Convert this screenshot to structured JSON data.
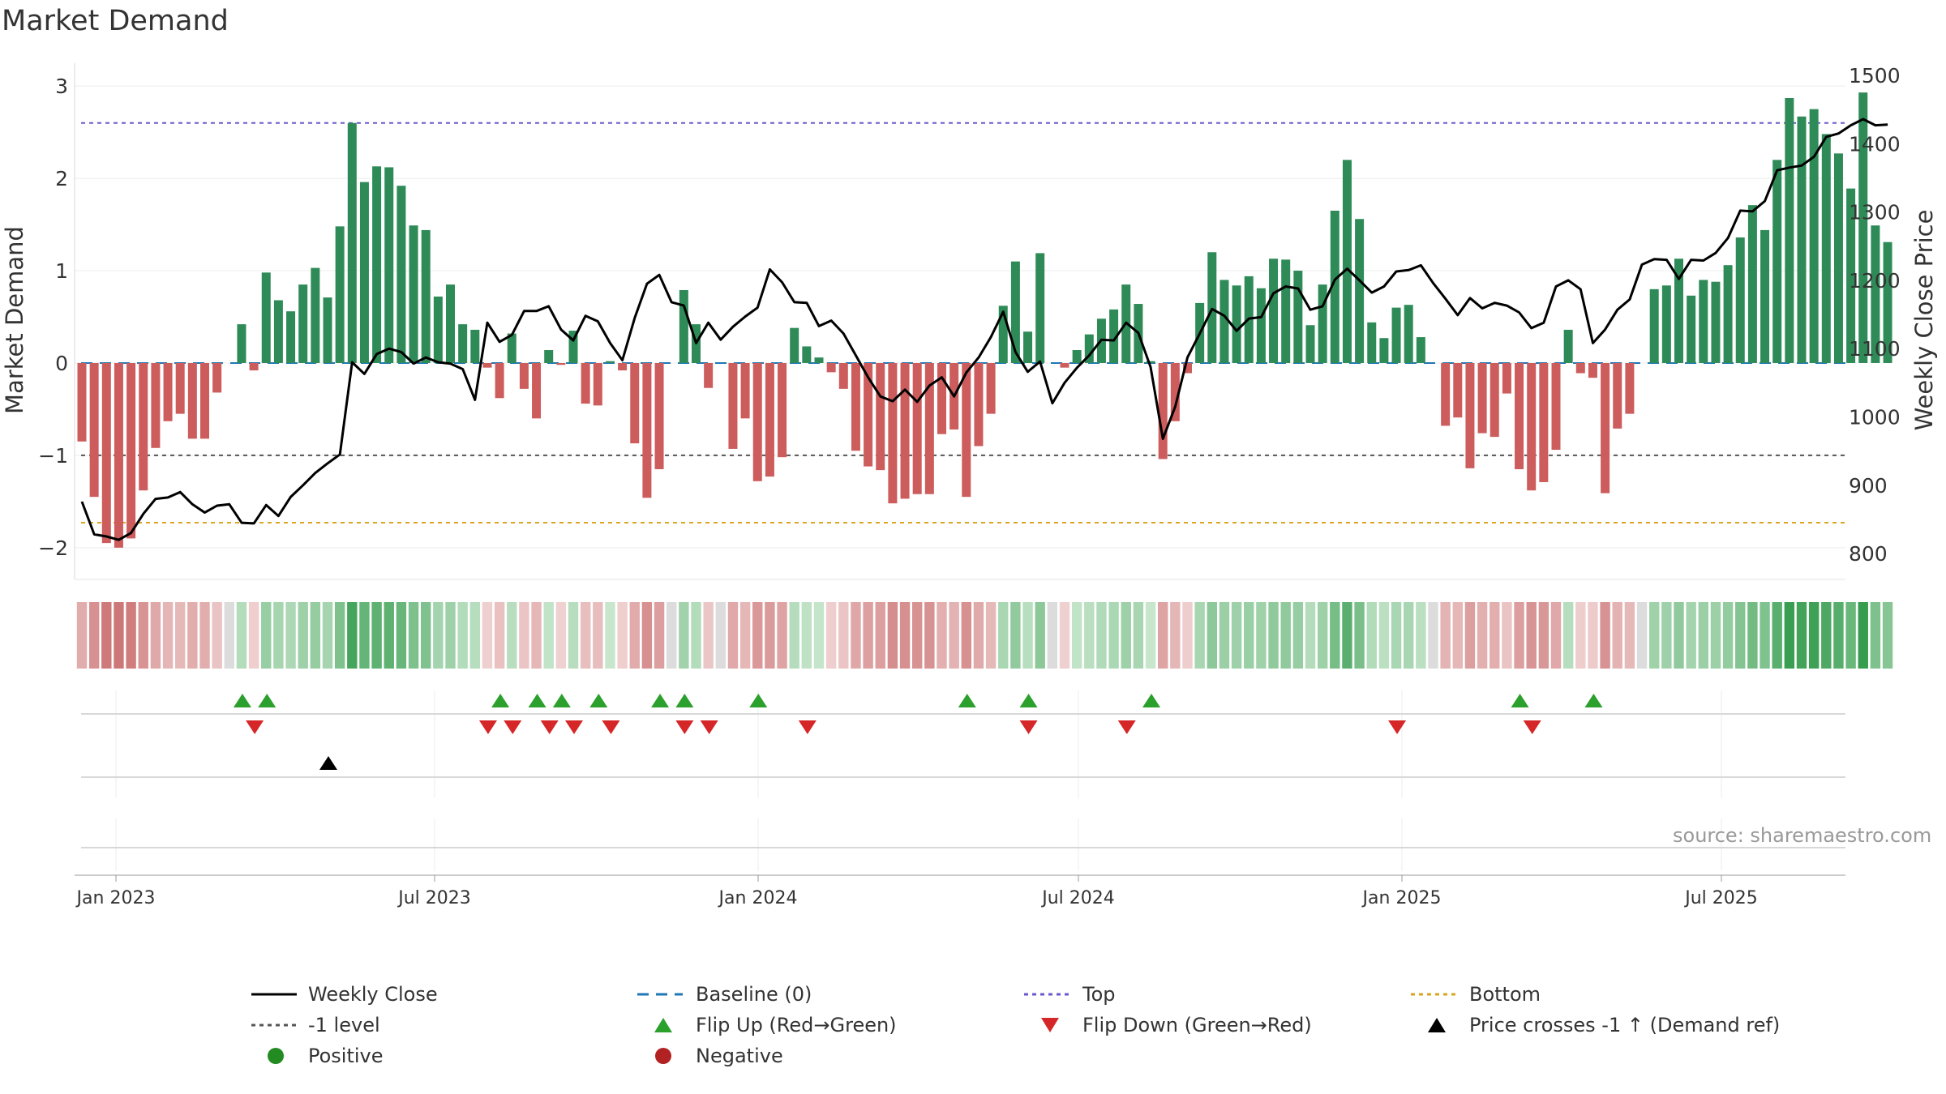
{
  "title": "Market Demand",
  "source": "source: sharemaestro.com",
  "chart_data": {
    "type": "bar",
    "x_ticks": [
      "Jan 2023",
      "Jul 2023",
      "Jan 2024",
      "Jul 2024",
      "Jan 2025",
      "Jul 2025"
    ],
    "left_axis": {
      "label": "Market Demand",
      "ticks": [
        3,
        2,
        1,
        0,
        -1,
        -2
      ],
      "range": [
        -2.3,
        3.3
      ]
    },
    "right_axis": {
      "label": "Weekly Close Price",
      "ticks": [
        1500,
        1400,
        1300,
        1200,
        1100,
        1000,
        900,
        800
      ],
      "range": [
        768,
        1525
      ]
    },
    "reference_lines": {
      "top": 2.6,
      "minus_one": -1.0,
      "bottom": -1.73,
      "baseline": 0
    },
    "series": [
      {
        "name": "Market Demand",
        "type": "bar",
        "values": [
          -0.85,
          -1.45,
          -1.95,
          -2.0,
          -1.9,
          -1.38,
          -0.92,
          -0.63,
          -0.55,
          -0.82,
          -0.82,
          -0.32,
          0.0,
          0.42,
          -0.08,
          0.98,
          0.68,
          0.56,
          0.85,
          1.03,
          0.71,
          1.48,
          2.6,
          1.96,
          2.13,
          2.12,
          1.92,
          1.49,
          1.44,
          0.72,
          0.85,
          0.42,
          0.36,
          -0.05,
          -0.38,
          0.32,
          -0.28,
          -0.6,
          0.14,
          -0.02,
          0.35,
          -0.44,
          -0.46,
          0.02,
          -0.08,
          -0.87,
          -1.46,
          -1.15,
          0.0,
          0.79,
          0.42,
          -0.27,
          0.0,
          -0.93,
          -0.6,
          -1.28,
          -1.23,
          -1.02,
          0.38,
          0.18,
          0.06,
          -0.1,
          -0.28,
          -0.95,
          -1.12,
          -1.16,
          -1.52,
          -1.47,
          -1.42,
          -1.42,
          -0.77,
          -0.72,
          -1.45,
          -0.9,
          -0.55,
          0.62,
          1.1,
          0.34,
          1.19,
          0.0,
          -0.05,
          0.14,
          0.31,
          0.48,
          0.58,
          0.85,
          0.64,
          0.02,
          -1.04,
          -0.63,
          -0.11,
          0.65,
          1.2,
          0.9,
          0.84,
          0.94,
          0.81,
          1.13,
          1.12,
          1.0,
          0.41,
          0.85,
          1.65,
          2.2,
          1.56,
          0.44,
          0.27,
          0.6,
          0.63,
          0.28,
          0.0,
          -0.68,
          -0.59,
          -1.14,
          -0.76,
          -0.8,
          -0.33,
          -1.15,
          -1.38,
          -1.29,
          -0.94,
          0.36,
          -0.11,
          -0.16,
          -1.41,
          -0.71,
          -0.55,
          0.0,
          0.8,
          0.84,
          1.13,
          0.73,
          0.9,
          0.88,
          1.06,
          1.36,
          1.71,
          1.44,
          2.2,
          2.87,
          2.67,
          2.75,
          2.48,
          2.27,
          1.89,
          2.93,
          1.49,
          1.31
        ]
      },
      {
        "name": "Weekly Close",
        "type": "line",
        "values": [
          876,
          828,
          825,
          820,
          830,
          858,
          880,
          882,
          890,
          872,
          860,
          870,
          872,
          845,
          844,
          871,
          855,
          883,
          900,
          918,
          932,
          945,
          1080,
          1063,
          1092,
          1100,
          1095,
          1078,
          1087,
          1080,
          1078,
          1070,
          1025,
          1138,
          1110,
          1120,
          1155,
          1155,
          1162,
          1128,
          1112,
          1148,
          1140,
          1108,
          1083,
          1145,
          1195,
          1208,
          1168,
          1163,
          1108,
          1138,
          1113,
          1132,
          1147,
          1160,
          1216,
          1197,
          1168,
          1167,
          1133,
          1141,
          1122,
          1090,
          1058,
          1030,
          1023,
          1040,
          1022,
          1046,
          1058,
          1030,
          1065,
          1087,
          1117,
          1154,
          1095,
          1066,
          1081,
          1020,
          1050,
          1072,
          1090,
          1113,
          1112,
          1138,
          1123,
          1073,
          968,
          1015,
          1087,
          1122,
          1158,
          1148,
          1126,
          1144,
          1146,
          1181,
          1191,
          1188,
          1157,
          1162,
          1201,
          1217,
          1200,
          1182,
          1191,
          1213,
          1215,
          1222,
          1196,
          1173,
          1149,
          1174,
          1159,
          1167,
          1163,
          1153,
          1130,
          1138,
          1191,
          1200,
          1187,
          1108,
          1128,
          1157,
          1172,
          1223,
          1231,
          1230,
          1202,
          1230,
          1229,
          1240,
          1262,
          1302,
          1301,
          1316,
          1361,
          1365,
          1368,
          1381,
          1410,
          1415,
          1427,
          1436,
          1427,
          1428
        ]
      }
    ],
    "flip_up_weeks": [
      13,
      15,
      34,
      37,
      39,
      42,
      47,
      49,
      55,
      72,
      77,
      87,
      117,
      123
    ],
    "flip_down_weeks": [
      14,
      33,
      35,
      38,
      40,
      43,
      49,
      51,
      59,
      77,
      85,
      107,
      118
    ],
    "price_cross_weeks": [
      20
    ],
    "legend": [
      "Weekly Close",
      "Baseline (0)",
      "Top",
      "Bottom",
      "-1 level",
      "Flip Up (Red→Green)",
      "Flip Down (Green→Red)",
      "Price crosses -1 ↑ (Demand ref)",
      "Positive",
      "Negative"
    ]
  },
  "colors": {
    "positive_bar": "#2e8b57",
    "negative_bar": "#cd5c5c",
    "price_line": "#000000",
    "baseline": "#1f77b4",
    "top_line": "#6a5acd",
    "minus_one_line": "#555555",
    "bottom_line": "#daa520",
    "flip_up": "#2ca02c",
    "flip_down": "#d62728",
    "positive_dot": "#228b22",
    "negative_dot": "#b22222"
  }
}
